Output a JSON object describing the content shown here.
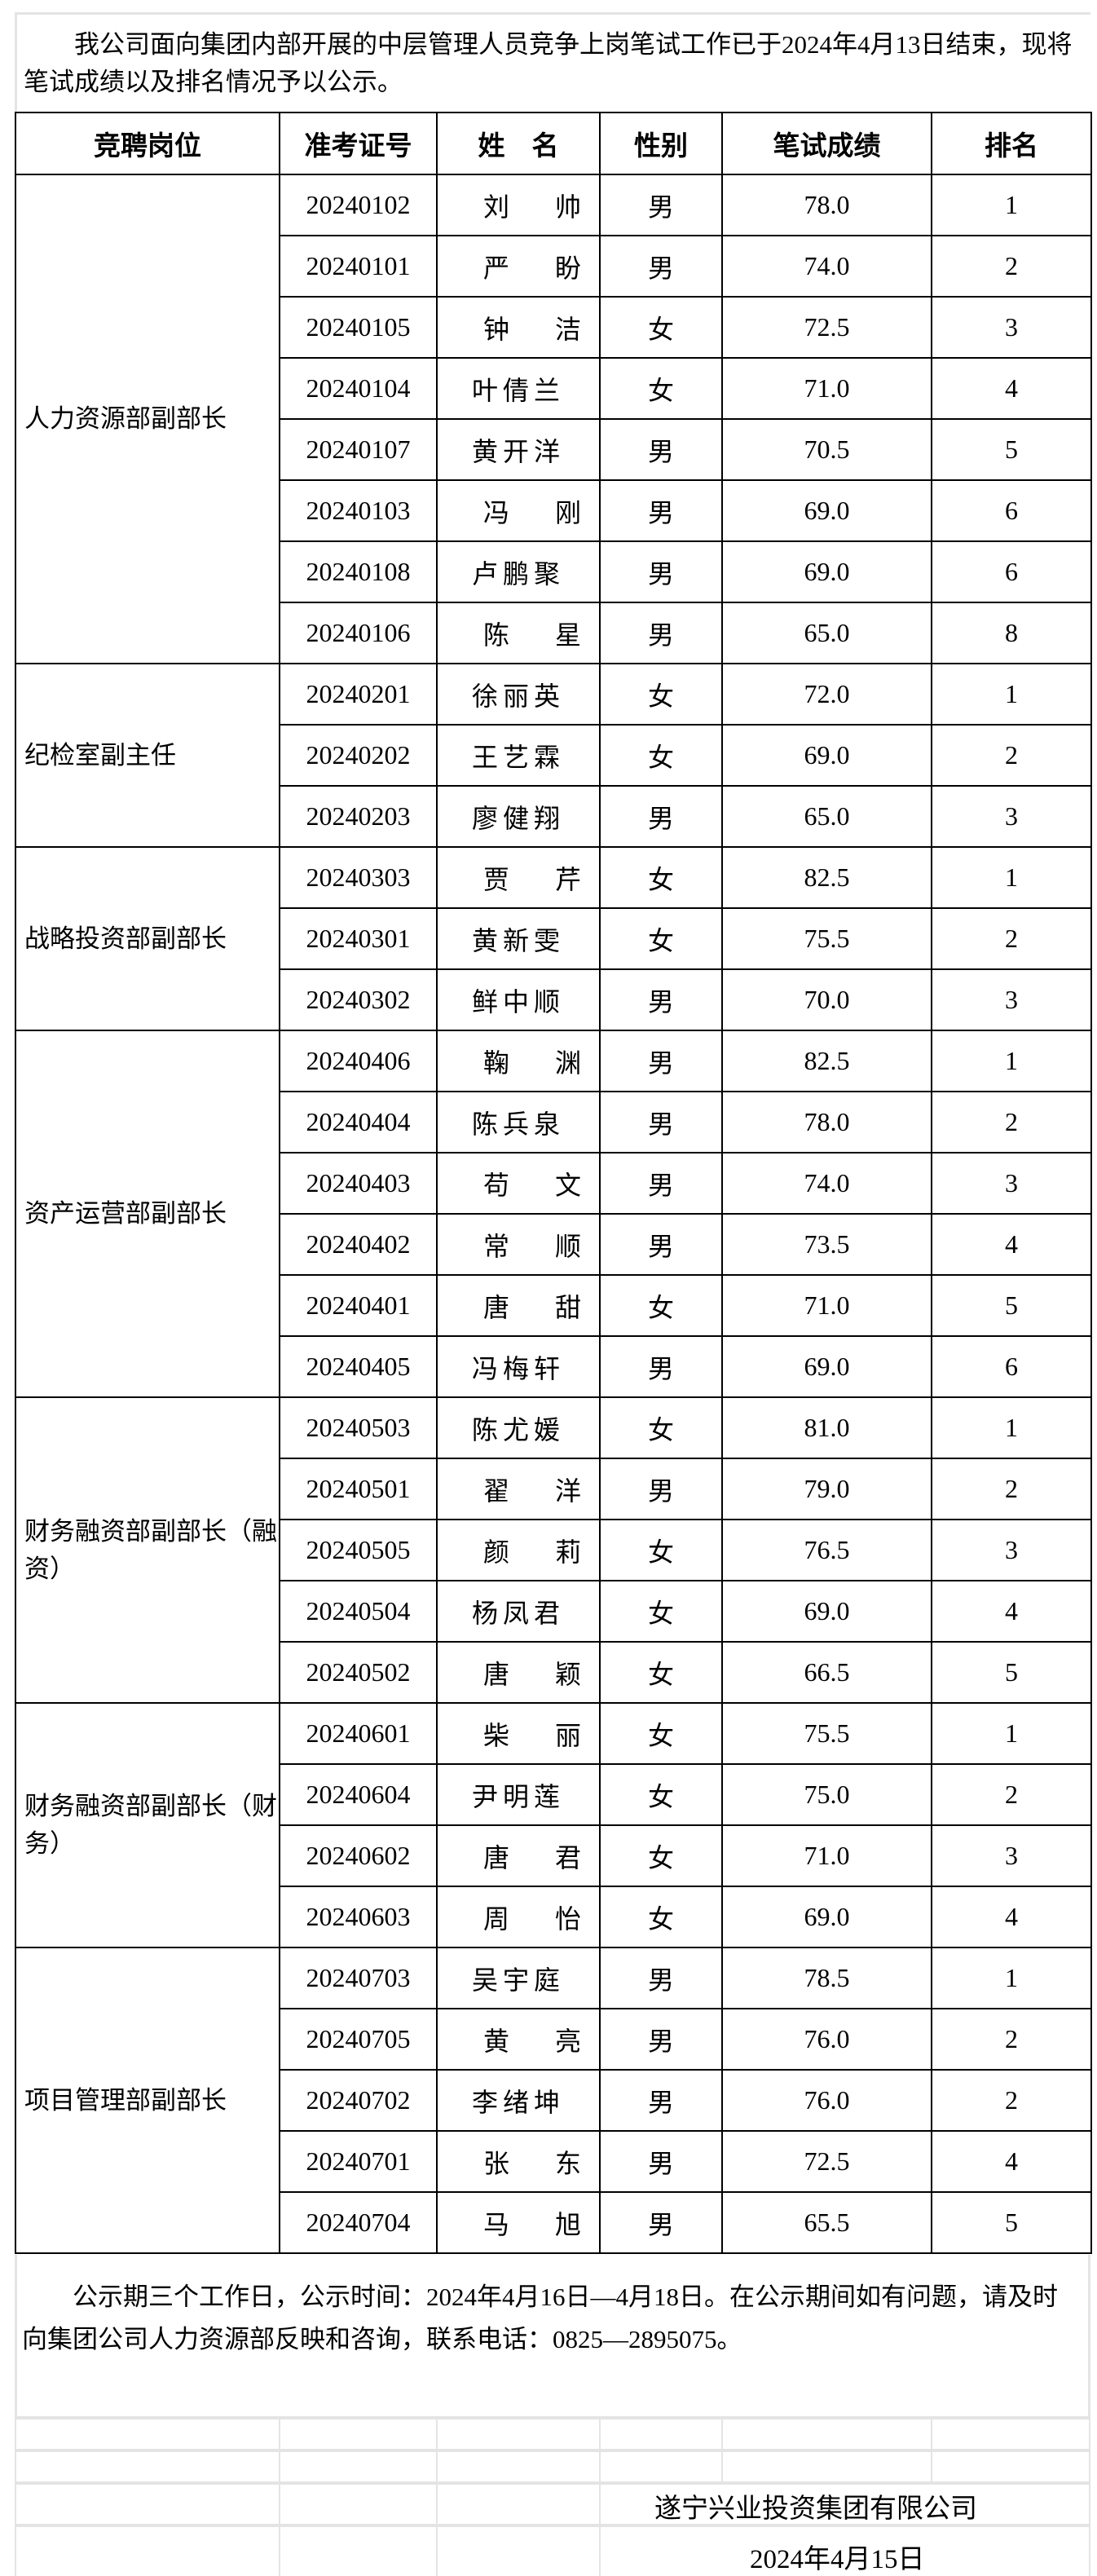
{
  "intro": "我公司面向集团内部开展的中层管理人员竞争上岗笔试工作已于2024年4月13日结束，现将笔试成绩以及排名情况予以公示。",
  "table": {
    "headers": [
      "竞聘岗位",
      "准考证号",
      "姓　名",
      "性别",
      "笔试成绩",
      "排名"
    ],
    "groups": [
      {
        "position": "人力资源部副部长",
        "rows": [
          [
            "20240102",
            "刘帅",
            "男",
            "78.0",
            "1"
          ],
          [
            "20240101",
            "严盼",
            "男",
            "74.0",
            "2"
          ],
          [
            "20240105",
            "钟洁",
            "女",
            "72.5",
            "3"
          ],
          [
            "20240104",
            "叶倩兰",
            "女",
            "71.0",
            "4"
          ],
          [
            "20240107",
            "黄开洋",
            "男",
            "70.5",
            "5"
          ],
          [
            "20240103",
            "冯刚",
            "男",
            "69.0",
            "6"
          ],
          [
            "20240108",
            "卢鹏聚",
            "男",
            "69.0",
            "6"
          ],
          [
            "20240106",
            "陈星",
            "男",
            "65.0",
            "8"
          ]
        ]
      },
      {
        "position": "纪检室副主任",
        "rows": [
          [
            "20240201",
            "徐丽英",
            "女",
            "72.0",
            "1"
          ],
          [
            "20240202",
            "王艺霖",
            "女",
            "69.0",
            "2"
          ],
          [
            "20240203",
            "廖健翔",
            "男",
            "65.0",
            "3"
          ]
        ]
      },
      {
        "position": "战略投资部副部长",
        "rows": [
          [
            "20240303",
            "贾芹",
            "女",
            "82.5",
            "1"
          ],
          [
            "20240301",
            "黄新雯",
            "女",
            "75.5",
            "2"
          ],
          [
            "20240302",
            "鲜中顺",
            "男",
            "70.0",
            "3"
          ]
        ]
      },
      {
        "position": "资产运营部副部长",
        "rows": [
          [
            "20240406",
            "鞠渊",
            "男",
            "82.5",
            "1"
          ],
          [
            "20240404",
            "陈兵泉",
            "男",
            "78.0",
            "2"
          ],
          [
            "20240403",
            "苟文",
            "男",
            "74.0",
            "3"
          ],
          [
            "20240402",
            "常顺",
            "男",
            "73.5",
            "4"
          ],
          [
            "20240401",
            "唐甜",
            "女",
            "71.0",
            "5"
          ],
          [
            "20240405",
            "冯梅轩",
            "男",
            "69.0",
            "6"
          ]
        ]
      },
      {
        "position": "财务融资部副部长（融资）",
        "rows": [
          [
            "20240503",
            "陈尤媛",
            "女",
            "81.0",
            "1"
          ],
          [
            "20240501",
            "翟洋",
            "男",
            "79.0",
            "2"
          ],
          [
            "20240505",
            "颜莉",
            "女",
            "76.5",
            "3"
          ],
          [
            "20240504",
            "杨凤君",
            "女",
            "69.0",
            "4"
          ],
          [
            "20240502",
            "唐颖",
            "女",
            "66.5",
            "5"
          ]
        ]
      },
      {
        "position": "财务融资部副部长（财务）",
        "rows": [
          [
            "20240601",
            "柴丽",
            "女",
            "75.5",
            "1"
          ],
          [
            "20240604",
            "尹明莲",
            "女",
            "75.0",
            "2"
          ],
          [
            "20240602",
            "唐君",
            "女",
            "71.0",
            "3"
          ],
          [
            "20240603",
            "周怡",
            "女",
            "69.0",
            "4"
          ]
        ]
      },
      {
        "position": "项目管理部副部长",
        "rows": [
          [
            "20240703",
            "吴宇庭",
            "男",
            "78.5",
            "1"
          ],
          [
            "20240705",
            "黄亮",
            "男",
            "76.0",
            "2"
          ],
          [
            "20240702",
            "李绪坤",
            "男",
            "76.0",
            "2"
          ],
          [
            "20240701",
            "张东",
            "男",
            "72.5",
            "4"
          ],
          [
            "20240704",
            "马旭",
            "男",
            "65.5",
            "5"
          ]
        ]
      }
    ]
  },
  "notice": "公示期三个工作日，公示时间：2024年4月16日—4月18日。在公示期间如有问题，请及时向集团公司人力资源部反映和咨询，联系电话：0825—2895075。",
  "signature": {
    "company": "遂宁兴业投资集团有限公司",
    "date": "2024年4月15日"
  }
}
